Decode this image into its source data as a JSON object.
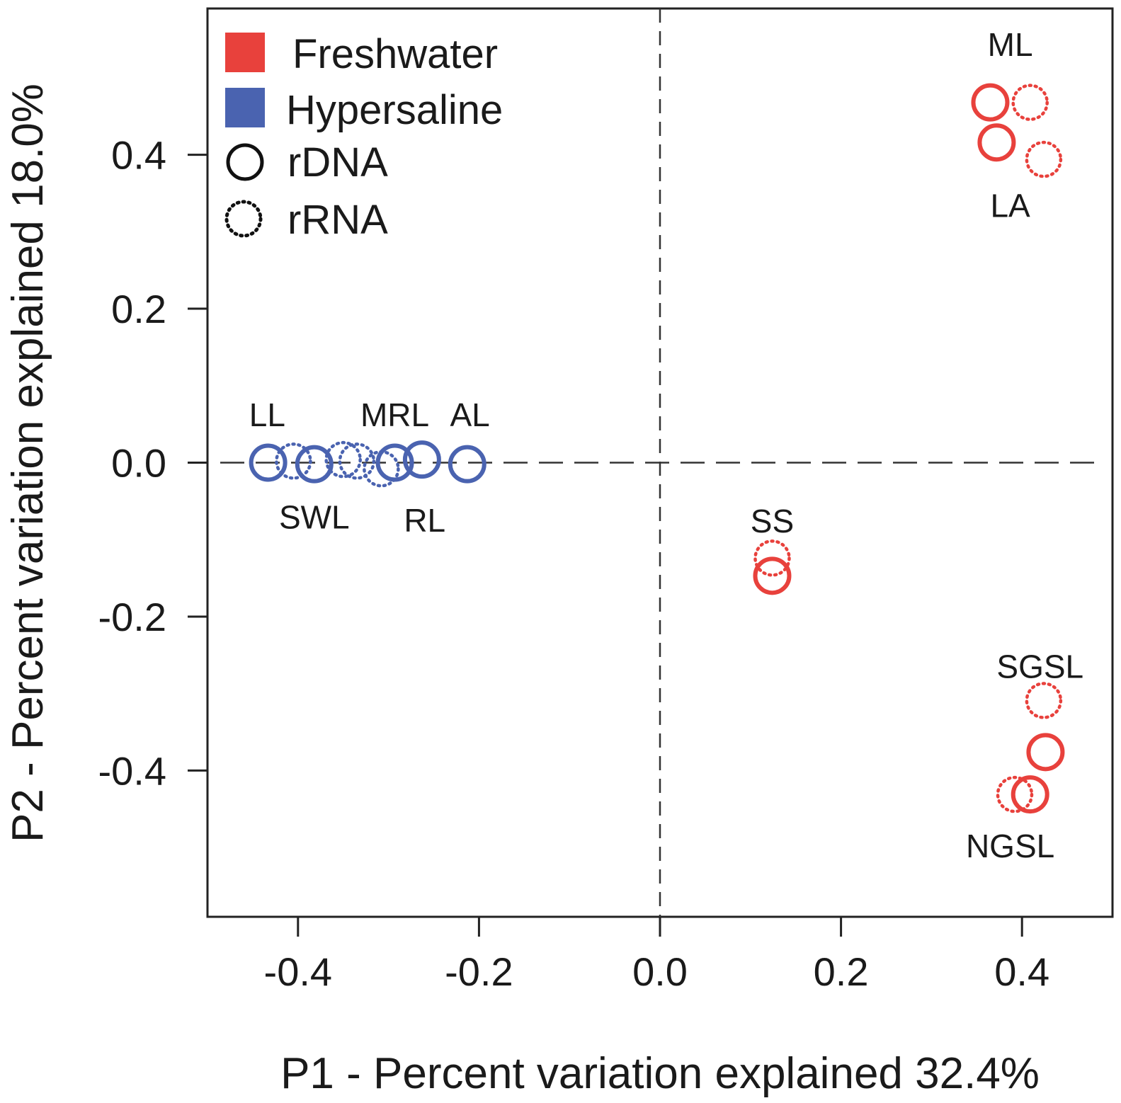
{
  "chart_data": {
    "type": "scatter",
    "xlabel": "P1 - Percent variation explained 32.4%",
    "ylabel": "P2 - Percent variation explained 18.0%",
    "xlim": [
      -0.5,
      0.5
    ],
    "ylim": [
      -0.59,
      0.59
    ],
    "xticks": [
      -0.4,
      -0.2,
      0.0,
      0.2,
      0.4
    ],
    "xtick_labels": [
      "-0.4",
      "-0.2",
      "0.0",
      "0.2",
      "0.4"
    ],
    "yticks": [
      -0.4,
      -0.2,
      0.0,
      0.2,
      0.4
    ],
    "ytick_labels": [
      "-0.4",
      "-0.2",
      "0.0",
      "0.2",
      "0.4"
    ],
    "reference_lines": {
      "x": 0.0,
      "y": 0.0,
      "style": "dashed"
    },
    "grid": false,
    "legend": {
      "position": "top-left",
      "entries": [
        {
          "label": "Freshwater",
          "marker": "square",
          "color": "#e8413c"
        },
        {
          "label": "Hypersaline",
          "marker": "square",
          "color": "#4a63b0"
        },
        {
          "label": "rDNA",
          "marker": "circle-solid",
          "color": "#111111"
        },
        {
          "label": "rRNA",
          "marker": "circle-dotted",
          "color": "#111111"
        }
      ]
    },
    "colors": {
      "freshwater": "#e8413c",
      "hypersaline": "#4a63b0",
      "axis": "#222222"
    },
    "series": [
      {
        "name": "Freshwater rDNA",
        "group": "Freshwater",
        "type": "rDNA",
        "points": [
          {
            "x": 0.365,
            "y": 0.468
          },
          {
            "x": 0.372,
            "y": 0.416
          },
          {
            "x": 0.124,
            "y": -0.147
          },
          {
            "x": 0.426,
            "y": -0.376
          },
          {
            "x": 0.409,
            "y": -0.431
          }
        ]
      },
      {
        "name": "Freshwater rRNA",
        "group": "Freshwater",
        "type": "rRNA",
        "points": [
          {
            "x": 0.409,
            "y": 0.468
          },
          {
            "x": 0.424,
            "y": 0.394
          },
          {
            "x": 0.124,
            "y": -0.124
          },
          {
            "x": 0.424,
            "y": -0.309
          },
          {
            "x": 0.392,
            "y": -0.431
          }
        ]
      },
      {
        "name": "Hypersaline rDNA",
        "group": "Hypersaline",
        "type": "rDNA",
        "points": [
          {
            "x": -0.433,
            "y": 0.0
          },
          {
            "x": -0.382,
            "y": -0.002
          },
          {
            "x": -0.293,
            "y": 0.0
          },
          {
            "x": -0.263,
            "y": 0.004
          },
          {
            "x": -0.213,
            "y": -0.002
          }
        ]
      },
      {
        "name": "Hypersaline rRNA",
        "group": "Hypersaline",
        "type": "rRNA",
        "points": [
          {
            "x": -0.405,
            "y": 0.002
          },
          {
            "x": -0.35,
            "y": 0.004
          },
          {
            "x": -0.335,
            "y": 0.002
          },
          {
            "x": -0.308,
            "y": -0.008
          }
        ]
      }
    ],
    "annotations": [
      {
        "text": "ML",
        "x": 0.387,
        "y": 0.543
      },
      {
        "text": "LA",
        "x": 0.387,
        "y": 0.334
      },
      {
        "text": "LL",
        "x": -0.434,
        "y": 0.062
      },
      {
        "text": "MRL",
        "x": -0.293,
        "y": 0.062
      },
      {
        "text": "AL",
        "x": -0.21,
        "y": 0.062
      },
      {
        "text": "SWL",
        "x": -0.382,
        "y": -0.071
      },
      {
        "text": "RL",
        "x": -0.26,
        "y": -0.075
      },
      {
        "text": "SS",
        "x": 0.124,
        "y": -0.076
      },
      {
        "text": "SGSL",
        "x": 0.42,
        "y": -0.265
      },
      {
        "text": "NGSL",
        "x": 0.387,
        "y": -0.498
      }
    ]
  }
}
